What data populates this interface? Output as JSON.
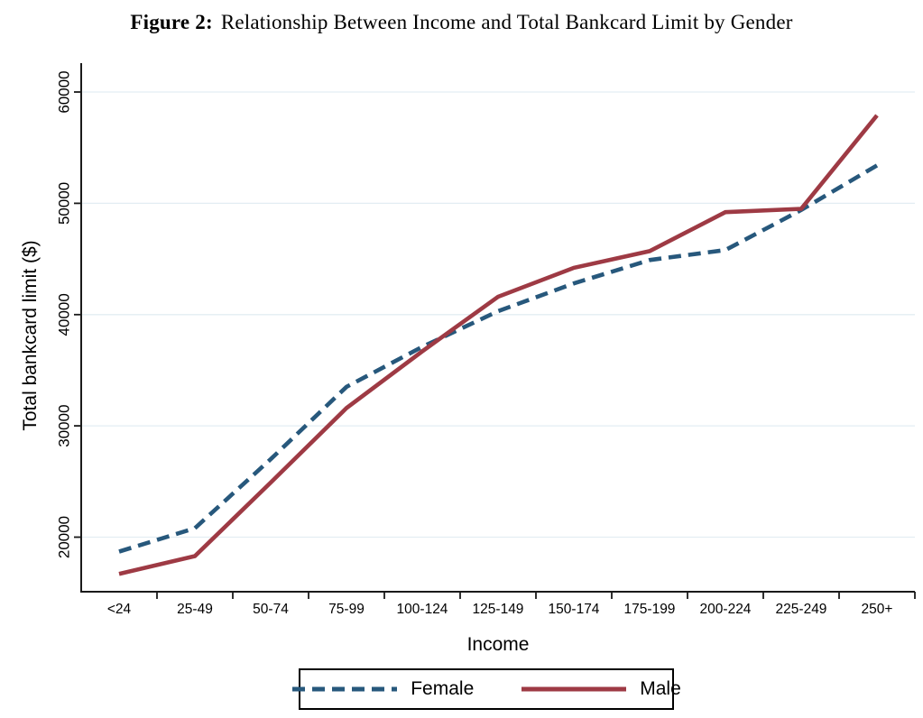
{
  "header": {
    "prefix": "Figure 2:",
    "title": "Relationship Between Income and Total Bankcard Limit by Gender"
  },
  "chart_data": {
    "type": "line",
    "title": "Figure 2: Relationship Between Income and Total Bankcard Limit by Gender",
    "xlabel": "Income",
    "ylabel": "Total bankcard limit ($)",
    "categories": [
      "<24",
      "25-49",
      "50-74",
      "75-99",
      "100-124",
      "125-149",
      "150-174",
      "175-199",
      "200-224",
      "225-249",
      "250+"
    ],
    "y_ticks": [
      20000,
      30000,
      40000,
      50000,
      60000
    ],
    "ylim": [
      15200,
      62700
    ],
    "grid": true,
    "legend_position": "bottom",
    "colors": {
      "female": "#27587c",
      "male": "#9e3a44",
      "gridline": "#e3edf3",
      "axis": "#1a1a1a"
    },
    "series": [
      {
        "name": "Female",
        "style": "dashed",
        "color": "#27587c",
        "values": [
          18700,
          20800,
          27000,
          33500,
          37100,
          40300,
          42800,
          44900,
          45800,
          49400,
          53400
        ]
      },
      {
        "name": "Male",
        "style": "solid",
        "color": "#9e3a44",
        "values": [
          16700,
          18300,
          24900,
          31600,
          36700,
          41600,
          44200,
          45700,
          49200,
          49500,
          57900
        ]
      }
    ]
  }
}
